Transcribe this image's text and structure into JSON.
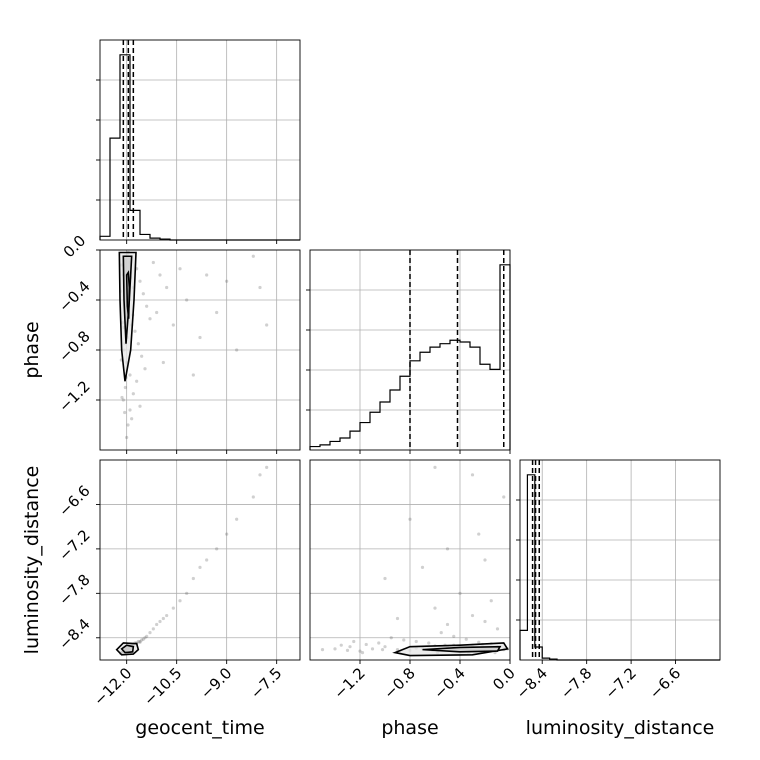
{
  "chart_data": {
    "type": "corner",
    "parameters": [
      "geocent_time",
      "phase",
      "luminosity_distance"
    ],
    "ranges": {
      "geocent_time": [
        -12.8,
        -6.8
      ],
      "phase": [
        -1.6,
        0.0
      ],
      "luminosity_distance": [
        -8.7,
        -6.0
      ]
    },
    "ticks": {
      "geocent_time": [
        -12.0,
        -10.5,
        -9.0,
        -7.5
      ],
      "phase": [
        -1.2,
        -0.8,
        -0.4,
        0.0
      ],
      "luminosity_distance": [
        -8.4,
        -7.8,
        -7.2,
        -6.6
      ]
    },
    "tick_labels": {
      "geocent_time": [
        "−12.0",
        "−10.5",
        "−9.0",
        "−7.5"
      ],
      "phase": [
        "−1.2",
        "−0.8",
        "−0.4",
        "0.0"
      ],
      "luminosity_distance": [
        "−8.4",
        "−7.8",
        "−7.2",
        "−6.6"
      ]
    },
    "axis_labels": {
      "geocent_time": "geocent_time",
      "phase": "phase",
      "luminosity_distance": "luminosity_distance"
    },
    "quantiles": {
      "geocent_time": [
        -12.1,
        -11.95,
        -11.8
      ],
      "phase": [
        -0.8,
        -0.42,
        -0.05
      ],
      "luminosity_distance": [
        -8.53,
        -8.49,
        -8.44
      ]
    },
    "histograms": {
      "geocent_time": {
        "edges": [
          -12.8,
          -12.5,
          -12.2,
          -11.9,
          -11.6,
          -11.3,
          -11.0,
          -10.7,
          -10.4,
          -10.1,
          -9.8,
          -9.5,
          -9.2,
          -8.9,
          -8.6,
          -8.3,
          -8.0,
          -7.7,
          -7.4,
          -7.1,
          -6.8
        ],
        "counts": [
          0.02,
          0.55,
          1.0,
          0.16,
          0.03,
          0.01,
          0.005,
          0,
          0,
          0,
          0,
          0,
          0,
          0,
          0,
          0,
          0,
          0,
          0,
          0
        ]
      },
      "phase": {
        "edges": [
          -1.6,
          -1.52,
          -1.44,
          -1.36,
          -1.28,
          -1.2,
          -1.12,
          -1.04,
          -0.96,
          -0.88,
          -0.8,
          -0.72,
          -0.64,
          -0.56,
          -0.48,
          -0.4,
          -0.32,
          -0.24,
          -0.16,
          -0.08,
          0.0
        ],
        "counts": [
          0.02,
          0.03,
          0.05,
          0.07,
          0.11,
          0.16,
          0.22,
          0.28,
          0.35,
          0.43,
          0.52,
          0.57,
          0.6,
          0.62,
          0.64,
          0.63,
          0.6,
          0.5,
          0.47,
          1.08
        ]
      },
      "luminosity_distance": {
        "edges": [
          -8.7,
          -8.6,
          -8.5,
          -8.4,
          -8.3,
          -8.2,
          -8.1,
          -8.0,
          -7.9,
          -7.8,
          -7.7,
          -7.6,
          -7.5,
          -7.4,
          -7.3,
          -7.2,
          -7.1,
          -7.0,
          -6.9,
          -6.8,
          -6.7,
          -6.6,
          -6.5,
          -6.4,
          -6.3,
          -6.2,
          -6.1,
          -6.0
        ],
        "counts": [
          0.16,
          1.0,
          0.07,
          0.01,
          0.005,
          0,
          0,
          0,
          0,
          0,
          0,
          0,
          0,
          0,
          0,
          0,
          0,
          0,
          0,
          0,
          0,
          0,
          0,
          0,
          0,
          0,
          0
        ]
      }
    },
    "samples": [
      [
        -12.05,
        -0.05,
        -8.56
      ],
      [
        -11.95,
        -0.02,
        -8.55
      ],
      [
        -11.9,
        -0.1,
        -8.52
      ],
      [
        -12.1,
        -0.2,
        -8.58
      ],
      [
        -11.8,
        -0.3,
        -8.5
      ],
      [
        -11.92,
        -0.4,
        -8.54
      ],
      [
        -12.02,
        -0.5,
        -8.53
      ],
      [
        -11.85,
        -0.6,
        -8.51
      ],
      [
        -11.98,
        -0.7,
        -8.55
      ],
      [
        -12.08,
        -0.8,
        -8.57
      ],
      [
        -12.0,
        -0.9,
        -8.56
      ],
      [
        -11.9,
        -1.0,
        -8.52
      ],
      [
        -12.04,
        -1.1,
        -8.55
      ],
      [
        -12.1,
        -1.2,
        -8.58
      ],
      [
        -12.06,
        -1.3,
        -8.57
      ],
      [
        -11.96,
        -1.4,
        -8.55
      ],
      [
        -12.0,
        -1.5,
        -8.56
      ],
      [
        -11.7,
        -0.15,
        -8.48
      ],
      [
        -11.6,
        -0.25,
        -8.46
      ],
      [
        -11.5,
        -0.35,
        -8.42
      ],
      [
        -11.4,
        -0.45,
        -8.38
      ],
      [
        -11.3,
        -0.55,
        -8.33
      ],
      [
        -11.75,
        -0.65,
        -8.47
      ],
      [
        -11.65,
        -0.75,
        -8.45
      ],
      [
        -11.55,
        -0.85,
        -8.43
      ],
      [
        -11.45,
        -0.95,
        -8.4
      ],
      [
        -11.7,
        -1.05,
        -8.47
      ],
      [
        -11.8,
        -1.15,
        -8.49
      ],
      [
        -11.6,
        -1.25,
        -8.45
      ],
      [
        -11.85,
        -1.35,
        -8.5
      ],
      [
        -12.15,
        -0.12,
        -8.6
      ],
      [
        -12.18,
        -0.33,
        -8.61
      ],
      [
        -12.12,
        -0.58,
        -8.6
      ],
      [
        -12.16,
        -0.88,
        -8.6
      ],
      [
        -12.14,
        -1.18,
        -8.6
      ],
      [
        -11.2,
        -0.1,
        -8.28
      ],
      [
        -11.1,
        -0.5,
        -8.22
      ],
      [
        -11.0,
        -0.2,
        -8.18
      ],
      [
        -10.9,
        -0.9,
        -8.14
      ],
      [
        -10.8,
        -0.3,
        -8.1
      ],
      [
        -10.6,
        -0.6,
        -8.0
      ],
      [
        -10.4,
        -0.15,
        -7.9
      ],
      [
        -10.2,
        -0.4,
        -7.8
      ],
      [
        -10.0,
        -1.0,
        -7.6
      ],
      [
        -9.8,
        -0.7,
        -7.45
      ],
      [
        -9.6,
        -0.2,
        -7.35
      ],
      [
        -9.3,
        -0.5,
        -7.2
      ],
      [
        -9.0,
        -0.25,
        -7.0
      ],
      [
        -8.7,
        -0.8,
        -6.8
      ],
      [
        -8.2,
        -0.05,
        -6.5
      ],
      [
        -8.0,
        -0.3,
        -6.2
      ],
      [
        -7.8,
        -0.6,
        -6.1
      ],
      [
        -11.95,
        -0.45,
        -8.5
      ],
      [
        -12.05,
        -0.75,
        -8.54
      ],
      [
        -11.88,
        -0.22,
        -8.49
      ],
      [
        -12.02,
        -1.02,
        -8.56
      ],
      [
        -11.9,
        -1.28,
        -8.52
      ],
      [
        -12.08,
        -0.62,
        -8.57
      ],
      [
        -11.98,
        -0.04,
        -8.55
      ],
      [
        -11.82,
        -0.52,
        -8.5
      ]
    ],
    "contours": {
      "geocent_time_phase": [
        [
          [
            -12.22,
            -0.02
          ],
          [
            -12.2,
            -0.4
          ],
          [
            -12.15,
            -0.8
          ],
          [
            -12.05,
            -1.05
          ],
          [
            -11.88,
            -0.8
          ],
          [
            -11.78,
            -0.4
          ],
          [
            -11.72,
            -0.02
          ]
        ],
        [
          [
            -12.1,
            -0.05
          ],
          [
            -12.08,
            -0.4
          ],
          [
            -12.02,
            -0.75
          ],
          [
            -11.92,
            -0.4
          ],
          [
            -11.85,
            -0.05
          ]
        ],
        [
          [
            -12.0,
            -0.2
          ],
          [
            -11.98,
            -0.45
          ],
          [
            -11.94,
            -0.55
          ],
          [
            -11.92,
            -0.3
          ],
          [
            -11.95,
            -0.18
          ]
        ]
      ],
      "geocent_time_luminosity_distance": [
        [
          [
            -12.3,
            -8.56
          ],
          [
            -12.1,
            -8.47
          ],
          [
            -11.7,
            -8.48
          ],
          [
            -11.65,
            -8.56
          ],
          [
            -11.8,
            -8.62
          ],
          [
            -12.15,
            -8.63
          ],
          [
            -12.3,
            -8.56
          ]
        ],
        [
          [
            -12.15,
            -8.55
          ],
          [
            -12.0,
            -8.5
          ],
          [
            -11.8,
            -8.52
          ],
          [
            -11.82,
            -8.59
          ],
          [
            -12.05,
            -8.6
          ],
          [
            -12.15,
            -8.55
          ]
        ]
      ],
      "phase_luminosity_distance": [
        [
          [
            -0.92,
            -8.6
          ],
          [
            -0.8,
            -8.52
          ],
          [
            -0.4,
            -8.5
          ],
          [
            -0.05,
            -8.47
          ],
          [
            -0.02,
            -8.55
          ],
          [
            -0.3,
            -8.63
          ],
          [
            -0.8,
            -8.64
          ],
          [
            -0.92,
            -8.6
          ]
        ],
        [
          [
            -0.7,
            -8.56
          ],
          [
            -0.4,
            -8.53
          ],
          [
            -0.08,
            -8.52
          ],
          [
            -0.1,
            -8.58
          ],
          [
            -0.4,
            -8.59
          ],
          [
            -0.7,
            -8.56
          ]
        ]
      ]
    }
  }
}
